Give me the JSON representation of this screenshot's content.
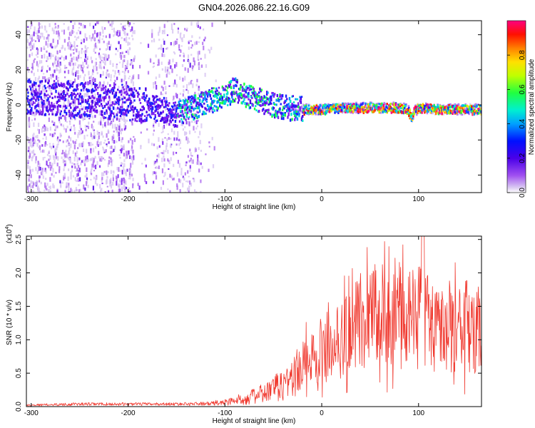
{
  "title": "GN04.2026.086.22.16.G09",
  "colors": {
    "snr_line": "#f03a30",
    "colormap": [
      "#d9c8f2",
      "#b070f0",
      "#7a1ff0",
      "#4a00e8",
      "#1a20ff",
      "#0090ff",
      "#00e0d0",
      "#20ff40",
      "#b0ff00",
      "#ffe000",
      "#ff8000",
      "#ff2000",
      "#ff0080"
    ]
  },
  "chart_data": [
    {
      "type": "heatmap",
      "xlabel": "Height of straight line (km)",
      "ylabel": "Frequency (Hz)",
      "xlim": [
        -305,
        165
      ],
      "ylim": [
        -50,
        48
      ],
      "xticks": [
        -300,
        -200,
        -100,
        0,
        100
      ],
      "xtick_labels": [
        "-300",
        "-200",
        "-100",
        "0",
        "100"
      ],
      "yticks": [
        40,
        20,
        0,
        -20,
        -40
      ],
      "ytick_labels": [
        "40",
        "20",
        "0",
        "-20",
        "-40"
      ],
      "ridge": {
        "x": [
          -300,
          -260,
          -230,
          -200,
          -180,
          -160,
          -150,
          -140,
          -120,
          -100,
          -90,
          -80,
          -60,
          -40,
          -30,
          -20,
          0,
          20,
          40,
          60,
          80,
          88,
          92,
          95,
          100,
          120,
          140,
          165
        ],
        "y": [
          5,
          4,
          3,
          2,
          0,
          -3,
          -5,
          -2,
          2,
          6,
          10,
          6,
          2,
          -1,
          -1,
          -2,
          -2,
          -1,
          -1,
          -1,
          -1,
          -2,
          -7,
          -3,
          -1,
          -2,
          -2,
          -2
        ]
      },
      "colorbar": {
        "label": "Normalized spectral amplitude",
        "range": [
          0,
          1
        ],
        "ticks": [
          0.0,
          0.2,
          0.4,
          0.6,
          0.8
        ],
        "tick_labels": [
          "0.0",
          "0.2",
          "0.4",
          "0.6",
          "0.8"
        ]
      }
    },
    {
      "type": "line",
      "xlabel": "Height of straight line (km)",
      "ylabel": "SNR (10 * v/v)",
      "yscale_note": "(x10",
      "yscale_exp": "4",
      "yscale_close": ")",
      "xlim": [
        -305,
        165
      ],
      "ylim": [
        0,
        2.55
      ],
      "xticks": [
        -300,
        -200,
        -100,
        0,
        100
      ],
      "xtick_labels": [
        "-300",
        "-200",
        "-100",
        "0",
        "100"
      ],
      "yticks": [
        0.0,
        0.5,
        1.0,
        1.5,
        2.0,
        2.5
      ],
      "ytick_labels": [
        "0.0",
        "0.5",
        "1.0",
        "1.5",
        "2.0",
        "2.5"
      ],
      "series": [
        {
          "envelope_x": [
            -305,
            -250,
            -200,
            -150,
            -120,
            -100,
            -80,
            -60,
            -50,
            -40,
            -30,
            -20,
            -10,
            0,
            10,
            20,
            30,
            40,
            50,
            60,
            70,
            80,
            90,
            100,
            110,
            120,
            130,
            140,
            150,
            160,
            165
          ],
          "envelope_y": [
            0.03,
            0.05,
            0.05,
            0.05,
            0.06,
            0.1,
            0.18,
            0.3,
            0.4,
            0.5,
            0.7,
            0.85,
            0.95,
            1.0,
            1.05,
            1.2,
            1.5,
            1.55,
            1.55,
            1.6,
            1.6,
            1.6,
            1.5,
            1.6,
            1.55,
            1.45,
            1.45,
            1.4,
            1.4,
            1.38,
            1.35
          ]
        }
      ]
    }
  ]
}
